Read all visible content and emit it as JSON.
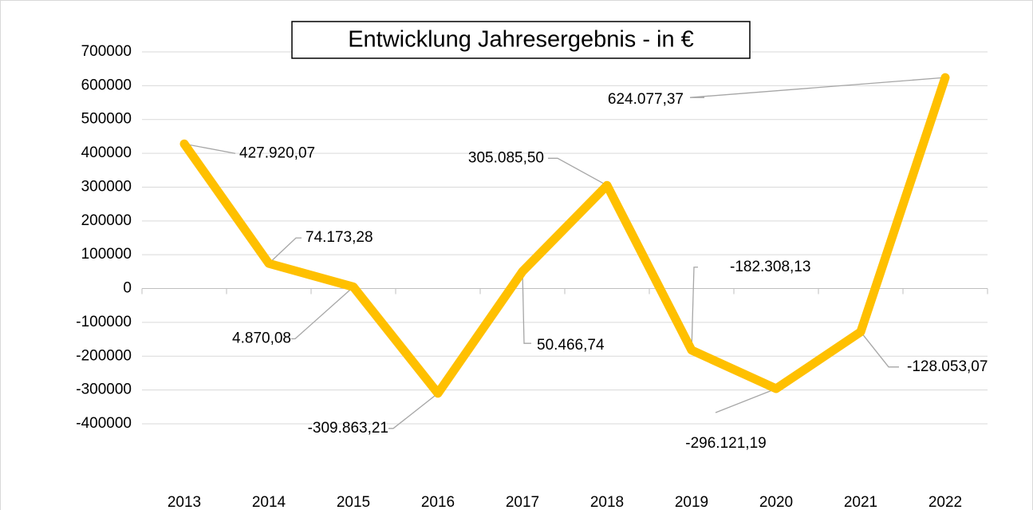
{
  "chart_data": {
    "type": "line",
    "title": "Entwicklung Jahresergebnis - in €",
    "categories": [
      "2013",
      "2014",
      "2015",
      "2016",
      "2017",
      "2018",
      "2019",
      "2020",
      "2021",
      "2022"
    ],
    "series": [
      {
        "name": "Jahresergebnis",
        "color": "#FFC000",
        "values": [
          427920.07,
          74173.28,
          4870.08,
          -309863.21,
          50466.74,
          305085.5,
          -182308.13,
          -296121.19,
          -128053.07,
          624077.37
        ],
        "value_labels": [
          "427.920,07",
          "74.173,28",
          "4.870,08",
          "-309.863,21",
          "50.466,74",
          "305.085,50",
          "-182.308,13",
          "-296.121,19",
          "-128.053,07",
          "624.077,37"
        ]
      }
    ],
    "ylim": [
      -400000,
      700000
    ],
    "yticks": [
      -400000,
      -300000,
      -200000,
      -100000,
      0,
      100000,
      200000,
      300000,
      400000,
      500000,
      600000,
      700000
    ],
    "grid": true
  }
}
